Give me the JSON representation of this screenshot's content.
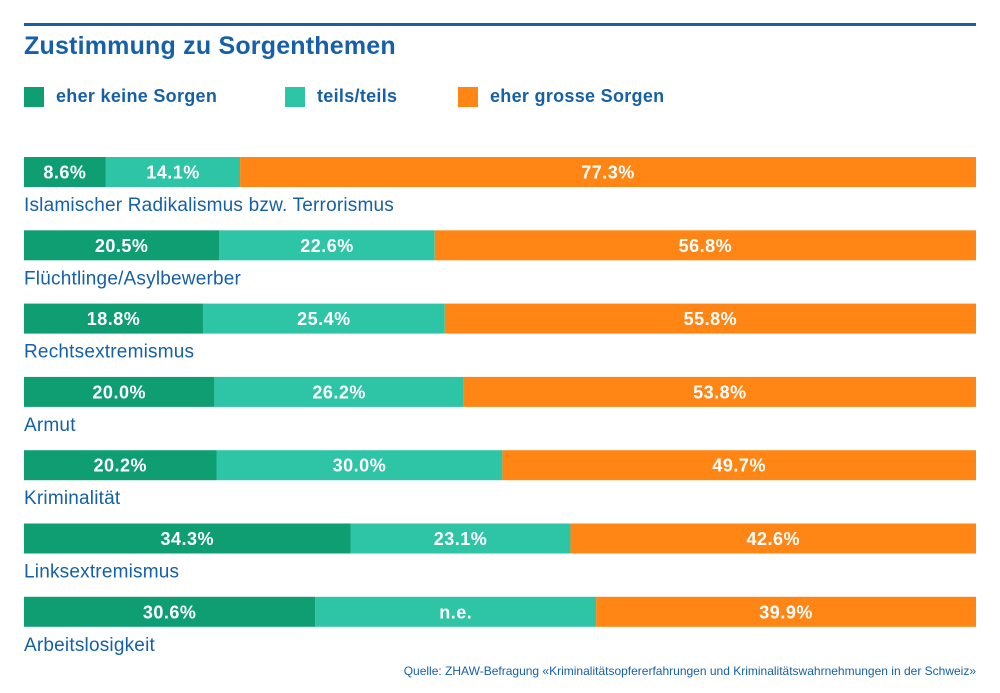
{
  "title": "Zustimmung zu Sorgenthemen",
  "source": "Quelle: ZHAW-Befragung «Kriminalitätsopfererfahrungen und Kriminalitätswahrnehmungen in der Schweiz»",
  "colors": {
    "eher_keine_sorgen": "#0f9e72",
    "teils_teils": "#2ec4a6",
    "eher_grosse_sorgen": "#ff8515",
    "text_blue": "#1560a8"
  },
  "legend": [
    {
      "label": "eher keine Sorgen",
      "color": "#0f9e72"
    },
    {
      "label": "teils/teils",
      "color": "#2ec4a6"
    },
    {
      "label": "eher grosse Sorgen",
      "color": "#ff8515"
    }
  ],
  "chart_data": {
    "type": "bar",
    "orientation": "horizontal",
    "stacked": true,
    "normalized": true,
    "title": "Zustimmung zu Sorgenthemen",
    "xlim": [
      0,
      100
    ],
    "grid": false,
    "legend_position": "top-left",
    "categories": [
      "Islamischer Radikalismus bzw. Terrorismus",
      "Flüchtlinge/Asylbewerber",
      "Rechtsextremismus",
      "Armut",
      "Kriminalität",
      "Linksextremismus",
      "Arbeitslosigkeit"
    ],
    "series": [
      {
        "name": "eher keine Sorgen",
        "color": "#0f9e72",
        "values": [
          8.6,
          20.5,
          18.8,
          20.0,
          20.2,
          34.3,
          30.6
        ],
        "labels": [
          "8.6%",
          "20.5%",
          "18.8%",
          "20.0%",
          "20.2%",
          "34.3%",
          "30.6%"
        ]
      },
      {
        "name": "teils/teils",
        "color": "#2ec4a6",
        "values": [
          14.1,
          22.6,
          25.4,
          26.2,
          30.0,
          23.1,
          29.5
        ],
        "labels": [
          "14.1%",
          "22.6%",
          "25.4%",
          "26.2%",
          "30.0%",
          "23.1%",
          "n.e."
        ]
      },
      {
        "name": "eher grosse Sorgen",
        "color": "#ff8515",
        "values": [
          77.3,
          56.8,
          55.8,
          53.8,
          49.7,
          42.6,
          39.9
        ],
        "labels": [
          "77.3%",
          "56.8%",
          "55.8%",
          "53.8%",
          "49.7%",
          "42.6%",
          "39.9%"
        ]
      }
    ]
  }
}
